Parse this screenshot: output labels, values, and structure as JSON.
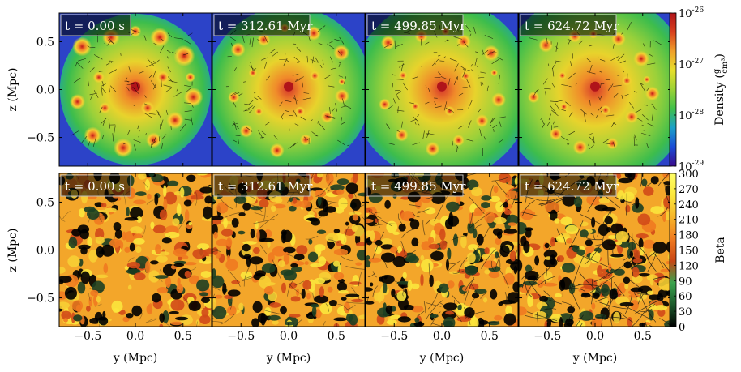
{
  "chart_data": [
    {
      "type": "heatmap",
      "row": "density",
      "panels": [
        {
          "time_label": "t = 0.00 s"
        },
        {
          "time_label": "t = 312.61 Myr"
        },
        {
          "time_label": "t = 499.85 Myr"
        },
        {
          "time_label": "t = 624.72 Myr"
        }
      ],
      "ylabel": "z  (Mpc)",
      "yticks": [
        "0.5",
        "0.0",
        "−0.5"
      ],
      "ytick_values": [
        0.5,
        0.0,
        -0.5
      ],
      "ylim": [
        -0.8,
        0.8
      ],
      "colorbar": {
        "label": "Density",
        "unit_num": "g",
        "unit_den": "cm³",
        "scale": "log",
        "range": [
          1e-29,
          1e-26
        ],
        "ticks": [
          {
            "base": "10",
            "exp": "-26",
            "value": 1e-26
          },
          {
            "base": "10",
            "exp": "-27",
            "value": 1e-27
          },
          {
            "base": "10",
            "exp": "-28",
            "value": 1e-28
          },
          {
            "base": "10",
            "exp": "-29",
            "value": 1e-29
          }
        ],
        "colormap": [
          "#3a0a8a",
          "#1a4bd6",
          "#1aa0c8",
          "#3fc04a",
          "#9ad236",
          "#e6df2c",
          "#f0a02a",
          "#d8401e",
          "#b0141a"
        ]
      }
    },
    {
      "type": "heatmap",
      "row": "beta",
      "panels": [
        {
          "time_label": "t = 0.00 s"
        },
        {
          "time_label": "t = 312.61 Myr"
        },
        {
          "time_label": "t = 499.85 Myr"
        },
        {
          "time_label": "t = 624.72 Myr"
        }
      ],
      "xlabel": "y  (Mpc)",
      "xticks": [
        "−0.5",
        "0.0",
        "0.5"
      ],
      "xtick_values": [
        -0.5,
        0.0,
        0.5
      ],
      "xlim": [
        -0.8,
        0.8
      ],
      "ylabel": "z  (Mpc)",
      "yticks": [
        "0.5",
        "0.0",
        "−0.5"
      ],
      "ytick_values": [
        0.5,
        0.0,
        -0.5
      ],
      "ylim": [
        -0.8,
        0.8
      ],
      "colorbar": {
        "label": "Beta",
        "scale": "linear",
        "range": [
          0,
          300
        ],
        "ticks": [
          "300",
          "270",
          "240",
          "210",
          "180",
          "150",
          "120",
          "90",
          "60",
          "30",
          "0"
        ],
        "tick_values": [
          300,
          270,
          240,
          210,
          180,
          150,
          120,
          90,
          60,
          30,
          0
        ],
        "colormap": [
          "#000000",
          "#1c5a2c",
          "#3aa34e",
          "#c84616",
          "#f07a20",
          "#f7b52a",
          "#fbe73c",
          "#ffff66"
        ]
      }
    }
  ]
}
